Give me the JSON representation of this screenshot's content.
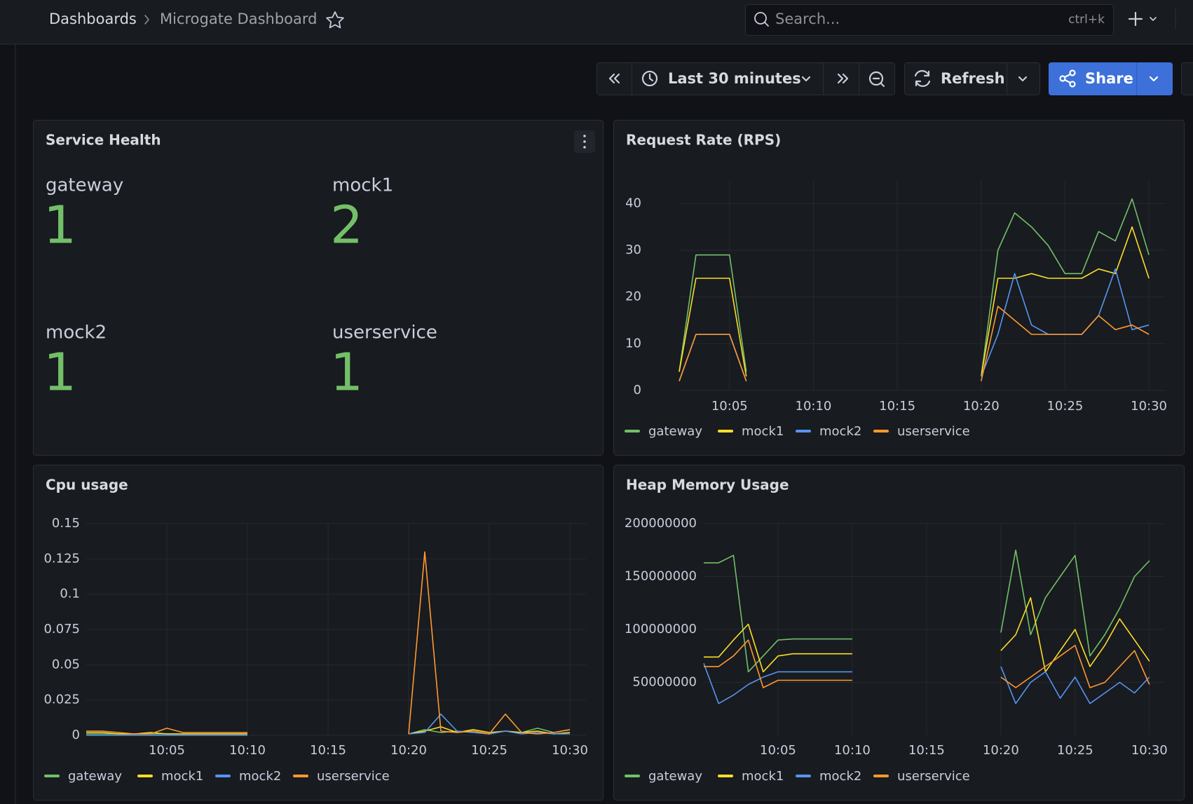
{
  "header": {
    "breadcrumb": [
      "Dashboards",
      "Microgate Dashboard"
    ],
    "search_placeholder": "Search...",
    "shortcut": "ctrl+k"
  },
  "toolbar": {
    "time_range": "Last 30 minutes",
    "refresh": "Refresh",
    "share": "Share"
  },
  "stat_panel": {
    "title": "Service Health",
    "stats": [
      {
        "name": "gateway",
        "value": 1
      },
      {
        "name": "mock1",
        "value": 2
      },
      {
        "name": "mock2",
        "value": 1
      },
      {
        "name": "userservice",
        "value": 1
      }
    ]
  },
  "chart_data": [
    {
      "type": "line",
      "title": "Request Rate (RPS)",
      "grid": true,
      "legend": "bottom",
      "x": [
        "10:02",
        "10:03",
        "10:04",
        "10:05",
        "10:06",
        "10:07",
        "10:08",
        "10:09",
        "10:10",
        "10:11",
        "10:12",
        "10:13",
        "10:14",
        "10:15",
        "10:16",
        "10:17",
        "10:18",
        "10:19",
        "10:20",
        "10:21",
        "10:22",
        "10:23",
        "10:24",
        "10:25",
        "10:26",
        "10:27",
        "10:28",
        "10:29",
        "10:30"
      ],
      "xlim": [
        "10:02",
        "10:31"
      ],
      "xticks": [
        "10:05",
        "10:10",
        "10:15",
        "10:20",
        "10:25",
        "10:30"
      ],
      "ylim": [
        0,
        45
      ],
      "yticks": [
        0,
        10,
        20,
        30,
        40
      ],
      "series": [
        {
          "name": "gateway",
          "color": "#73bf69",
          "values": [
            4,
            29,
            29,
            29,
            4,
            null,
            null,
            null,
            null,
            null,
            null,
            null,
            null,
            null,
            null,
            null,
            null,
            null,
            3,
            30,
            38,
            35,
            31,
            25,
            25,
            34,
            32,
            41,
            29
          ]
        },
        {
          "name": "mock1",
          "color": "#fade2a",
          "values": [
            4,
            24,
            24,
            24,
            3,
            null,
            null,
            null,
            null,
            null,
            null,
            null,
            null,
            null,
            null,
            null,
            null,
            null,
            3,
            24,
            24,
            25,
            24,
            24,
            24,
            26,
            25,
            35,
            24
          ]
        },
        {
          "name": "mock2",
          "color": "#5794f2",
          "values": [
            2,
            12,
            12,
            12,
            2,
            null,
            null,
            null,
            null,
            null,
            null,
            null,
            null,
            null,
            null,
            null,
            null,
            null,
            3,
            12,
            25,
            14,
            12,
            12,
            12,
            16,
            26,
            13,
            14
          ]
        },
        {
          "name": "userservice",
          "color": "#ff9830",
          "values": [
            2,
            12,
            12,
            12,
            2,
            null,
            null,
            null,
            null,
            null,
            null,
            null,
            null,
            null,
            null,
            null,
            null,
            null,
            2,
            18,
            15,
            12,
            12,
            12,
            12,
            16,
            13,
            14,
            12
          ]
        }
      ]
    },
    {
      "type": "line",
      "title": "Cpu usage",
      "grid": true,
      "legend": "bottom",
      "x": [
        "10:00",
        "10:01",
        "10:02",
        "10:03",
        "10:04",
        "10:05",
        "10:06",
        "10:07",
        "10:08",
        "10:09",
        "10:10",
        "10:11",
        "10:12",
        "10:13",
        "10:14",
        "10:15",
        "10:16",
        "10:17",
        "10:18",
        "10:19",
        "10:20",
        "10:21",
        "10:22",
        "10:23",
        "10:24",
        "10:25",
        "10:26",
        "10:27",
        "10:28",
        "10:29",
        "10:30"
      ],
      "xlim": [
        "10:00",
        "10:31"
      ],
      "xticks": [
        "10:05",
        "10:10",
        "10:15",
        "10:20",
        "10:25",
        "10:30"
      ],
      "ylim": [
        0,
        0.15
      ],
      "yticks": [
        0,
        0.025,
        0.05,
        0.075,
        0.1,
        0.125,
        0.15
      ],
      "series": [
        {
          "name": "gateway",
          "color": "#73bf69",
          "values": [
            0.001,
            0.001,
            0.001,
            0.001,
            0.001,
            0.001,
            0.001,
            0.001,
            0.001,
            0.001,
            0.001,
            null,
            null,
            null,
            null,
            null,
            null,
            null,
            null,
            null,
            0.001,
            0.004,
            0.002,
            0.003,
            0.002,
            0.001,
            0.003,
            0.002,
            0.005,
            0.002,
            0.004
          ]
        },
        {
          "name": "mock1",
          "color": "#fade2a",
          "values": [
            0.002,
            0.002,
            0.001,
            0.001,
            0.002,
            0.001,
            0.001,
            0.001,
            0.001,
            0.001,
            0.001,
            null,
            null,
            null,
            null,
            null,
            null,
            null,
            null,
            null,
            0.001,
            0.003,
            0.006,
            0.002,
            0.004,
            0.002,
            0.003,
            0.002,
            0.003,
            0.001,
            0.002
          ]
        },
        {
          "name": "mock2",
          "color": "#5794f2",
          "values": [
            0,
            0,
            0,
            0,
            0,
            0,
            0,
            0,
            0,
            0,
            0,
            null,
            null,
            null,
            null,
            null,
            null,
            null,
            null,
            null,
            0.001,
            0.002,
            0.015,
            0.003,
            0.002,
            0.001,
            0.003,
            0.001,
            0.002,
            0.001,
            0.001
          ]
        },
        {
          "name": "userservice",
          "color": "#ff9830",
          "values": [
            0.003,
            0.003,
            0.002,
            0.001,
            0.001,
            0.005,
            0.002,
            0.002,
            0.002,
            0.002,
            0.002,
            null,
            null,
            null,
            null,
            null,
            null,
            null,
            null,
            null,
            0.001,
            0.13,
            0.003,
            0.002,
            0.003,
            0.001,
            0.015,
            0.002,
            0.001,
            0.002,
            0.004
          ]
        }
      ]
    },
    {
      "type": "line",
      "title": "Heap Memory Usage",
      "grid": true,
      "legend": "bottom",
      "x": [
        "10:00",
        "10:01",
        "10:02",
        "10:03",
        "10:04",
        "10:05",
        "10:06",
        "10:07",
        "10:08",
        "10:09",
        "10:10",
        "10:11",
        "10:12",
        "10:13",
        "10:14",
        "10:15",
        "10:16",
        "10:17",
        "10:18",
        "10:19",
        "10:20",
        "10:21",
        "10:22",
        "10:23",
        "10:24",
        "10:25",
        "10:26",
        "10:27",
        "10:28",
        "10:29",
        "10:30"
      ],
      "xlim": [
        "10:00",
        "10:31"
      ],
      "xticks": [
        "10:05",
        "10:10",
        "10:15",
        "10:20",
        "10:25",
        "10:30"
      ],
      "ylim": [
        0,
        200000000
      ],
      "yticks": [
        50000000,
        100000000,
        150000000,
        200000000
      ],
      "series": [
        {
          "name": "gateway",
          "color": "#73bf69",
          "values": [
            163000000,
            163000000,
            170000000,
            60000000,
            75000000,
            90000000,
            91000000,
            91000000,
            91000000,
            91000000,
            91000000,
            null,
            null,
            null,
            null,
            null,
            null,
            null,
            null,
            null,
            97000000,
            175000000,
            95000000,
            130000000,
            150000000,
            170000000,
            75000000,
            95000000,
            120000000,
            150000000,
            165000000
          ]
        },
        {
          "name": "mock1",
          "color": "#fade2a",
          "values": [
            74000000,
            74000000,
            90000000,
            105000000,
            60000000,
            75000000,
            77000000,
            77000000,
            77000000,
            77000000,
            77000000,
            null,
            null,
            null,
            null,
            null,
            null,
            null,
            null,
            null,
            80000000,
            95000000,
            130000000,
            60000000,
            80000000,
            100000000,
            65000000,
            85000000,
            110000000,
            90000000,
            70000000
          ]
        },
        {
          "name": "mock2",
          "color": "#5794f2",
          "values": [
            68000000,
            30000000,
            38000000,
            48000000,
            55000000,
            60000000,
            60000000,
            60000000,
            60000000,
            60000000,
            60000000,
            null,
            null,
            null,
            null,
            null,
            null,
            null,
            null,
            null,
            65000000,
            30000000,
            50000000,
            60000000,
            35000000,
            55000000,
            30000000,
            40000000,
            50000000,
            40000000,
            55000000
          ]
        },
        {
          "name": "userservice",
          "color": "#ff9830",
          "values": [
            65000000,
            65000000,
            75000000,
            90000000,
            45000000,
            52000000,
            52000000,
            52000000,
            52000000,
            52000000,
            52000000,
            null,
            null,
            null,
            null,
            null,
            null,
            null,
            null,
            null,
            55000000,
            45000000,
            55000000,
            65000000,
            75000000,
            85000000,
            45000000,
            50000000,
            65000000,
            80000000,
            48000000
          ]
        }
      ]
    }
  ]
}
